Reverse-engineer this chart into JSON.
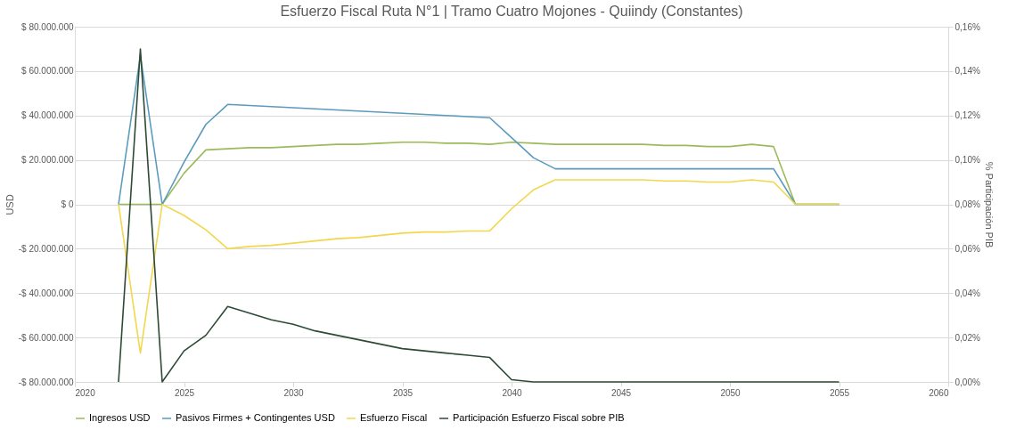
{
  "chart_data": {
    "type": "line",
    "title": "Esfuerzo Fiscal Ruta N°1 | Tramo Cuatro Mojones - Quiindy (Constantes)",
    "ylabel": "USD",
    "y2label": "% Participación PIB",
    "x": [
      2022,
      2023,
      2024,
      2025,
      2026,
      2027,
      2028,
      2029,
      2030,
      2031,
      2032,
      2033,
      2034,
      2035,
      2036,
      2037,
      2038,
      2039,
      2040,
      2041,
      2042,
      2043,
      2044,
      2045,
      2046,
      2047,
      2048,
      2049,
      2050,
      2051,
      2052,
      2053,
      2054,
      2055
    ],
    "series": [
      {
        "name": "Ingresos USD",
        "color": "#9bbb59",
        "values": [
          0,
          0,
          0,
          14000000,
          24500000,
          25000000,
          25500000,
          25500000,
          26000000,
          26500000,
          27000000,
          27000000,
          27500000,
          28000000,
          28000000,
          27500000,
          27500000,
          27000000,
          28000000,
          27500000,
          27000000,
          27000000,
          27000000,
          27000000,
          27000000,
          26500000,
          26500000,
          26000000,
          26000000,
          27000000,
          26000000,
          0,
          0,
          0
        ]
      },
      {
        "name": "Pasivos Firmes + Contingentes USD",
        "color": "#5b9bbd",
        "values": [
          0,
          67000000,
          0,
          19000000,
          36000000,
          45000000,
          44500000,
          44000000,
          43500000,
          43000000,
          42500000,
          42000000,
          41500000,
          41000000,
          40500000,
          40000000,
          39500000,
          39000000,
          30000000,
          21000000,
          16000000,
          16000000,
          16000000,
          16000000,
          16000000,
          16000000,
          16000000,
          16000000,
          16000000,
          16000000,
          16000000,
          0,
          0,
          0
        ]
      },
      {
        "name": "Esfuerzo Fiscal",
        "color": "#f2d74e",
        "values": [
          0,
          -67000000,
          0,
          -5000000,
          -11500000,
          -20000000,
          -19000000,
          -18500000,
          -17500000,
          -16500000,
          -15500000,
          -15000000,
          -14000000,
          -13000000,
          -12500000,
          -12500000,
          -12000000,
          -12000000,
          -2000000,
          6500000,
          11000000,
          11000000,
          11000000,
          11000000,
          11000000,
          10500000,
          10500000,
          10000000,
          10000000,
          11000000,
          10000000,
          0,
          0,
          0
        ]
      },
      {
        "name": "Participación Esfuerzo Fiscal sobre PIB",
        "color": "#2e4a36",
        "axis": "y2",
        "values": [
          0,
          0.15,
          0,
          0.014,
          0.021,
          0.034,
          0.031,
          0.028,
          0.026,
          0.023,
          0.021,
          0.019,
          0.017,
          0.015,
          0.014,
          0.013,
          0.012,
          0.011,
          0.001,
          0,
          0,
          0,
          0,
          0,
          0,
          0,
          0,
          0,
          0,
          0,
          0,
          0,
          0,
          0
        ]
      }
    ],
    "xlim": [
      2020,
      2060
    ],
    "xticks": [
      2020,
      2025,
      2030,
      2035,
      2040,
      2045,
      2050,
      2055,
      2060
    ],
    "ylim": [
      -80000000,
      80000000
    ],
    "yticks": [
      {
        "value": -80000000,
        "label": "-$ 80.000.000"
      },
      {
        "value": -60000000,
        "label": "-$ 60.000.000"
      },
      {
        "value": -40000000,
        "label": "-$ 40.000.000"
      },
      {
        "value": -20000000,
        "label": "-$ 20.000.000"
      },
      {
        "value": 0,
        "label": "$ 0"
      },
      {
        "value": 20000000,
        "label": "$ 20.000.000"
      },
      {
        "value": 40000000,
        "label": "$ 40.000.000"
      },
      {
        "value": 60000000,
        "label": "$ 60.000.000"
      },
      {
        "value": 80000000,
        "label": "$ 80.000.000"
      }
    ],
    "y2lim": [
      0,
      0.16
    ],
    "y2ticks": [
      {
        "value": 0,
        "label": "0,00%"
      },
      {
        "value": 0.02,
        "label": "0,02%"
      },
      {
        "value": 0.04,
        "label": "0,04%"
      },
      {
        "value": 0.06,
        "label": "0,06%"
      },
      {
        "value": 0.08,
        "label": "0,08%"
      },
      {
        "value": 0.1,
        "label": "0,10%"
      },
      {
        "value": 0.12,
        "label": "0,12%"
      },
      {
        "value": 0.14,
        "label": "0,14%"
      },
      {
        "value": 0.16,
        "label": "0,16%"
      }
    ],
    "grid": "y",
    "legend": "bottom",
    "marker": "none",
    "line_style": "solid"
  }
}
